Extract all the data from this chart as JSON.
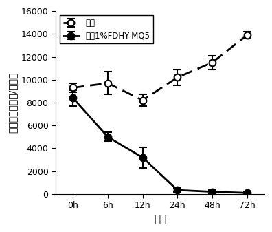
{
  "x_labels": [
    "0h",
    "6h",
    "12h",
    "24h",
    "48h",
    "72h"
  ],
  "x_values": [
    0,
    6,
    12,
    24,
    48,
    72
  ],
  "control_y": [
    9300,
    9700,
    8200,
    10200,
    11500,
    13900
  ],
  "control_yerr": [
    400,
    1000,
    500,
    700,
    600,
    300
  ],
  "treatment_y": [
    8400,
    5000,
    3200,
    350,
    200,
    100
  ],
  "treatment_yerr": [
    700,
    400,
    900,
    200,
    150,
    100
  ],
  "ylabel": "藻细胞浓度（个/毫升）",
  "xlabel": "时间",
  "ylim": [
    0,
    16000
  ],
  "yticks": [
    0,
    2000,
    4000,
    6000,
    8000,
    10000,
    12000,
    14000,
    16000
  ],
  "legend_control": "对照",
  "legend_treatment": "添加1%FDHY-MQ5",
  "control_color": "#000000",
  "treatment_color": "#000000",
  "figsize": [
    3.96,
    3.37
  ],
  "dpi": 100
}
